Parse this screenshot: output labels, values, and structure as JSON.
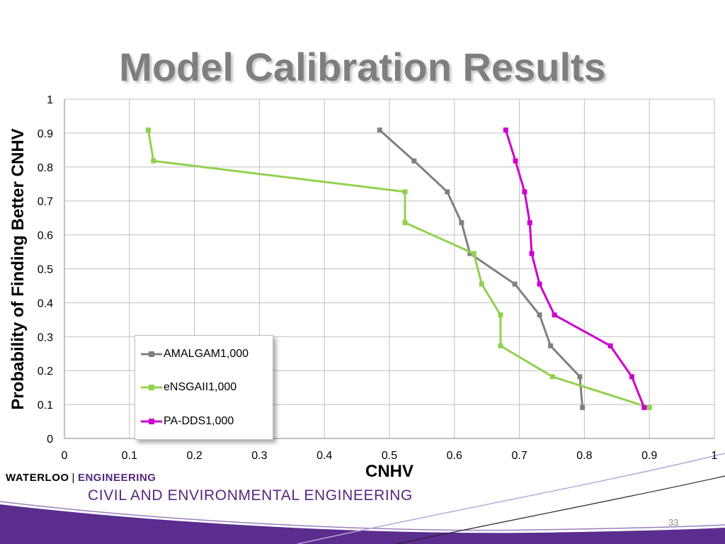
{
  "slide": {
    "title": "Model Calibration Results",
    "page_number": "33"
  },
  "footer": {
    "brand_left": "WATERLOO",
    "brand_separator": "|",
    "brand_right": "ENGINEERING",
    "department": "CIVIL AND ENVIRONMENTAL ENGINEERING"
  },
  "colors": {
    "title_gray": "#7f7f7f",
    "brand_purple": "#57277f",
    "band_purple": "#5b2d8e"
  },
  "chart_data": {
    "type": "line",
    "xlabel": "CNHV",
    "ylabel": "Probability of Finding Better CNHV",
    "xlim": [
      0,
      1
    ],
    "ylim": [
      0,
      1
    ],
    "x_ticks": [
      "0",
      "0.1",
      "0.2",
      "0.3",
      "0.4",
      "0.5",
      "0.6",
      "0.7",
      "0.8",
      "0.9",
      "1"
    ],
    "y_ticks": [
      "0",
      "0.1",
      "0.2",
      "0.3",
      "0.4",
      "0.5",
      "0.6",
      "0.7",
      "0.8",
      "0.9",
      "1"
    ],
    "grid": true,
    "legend_position": "bottom-left",
    "series": [
      {
        "name": "AMALGAM1,000",
        "color": "#808080",
        "points": [
          [
            0.485,
            0.909
          ],
          [
            0.538,
            0.818
          ],
          [
            0.589,
            0.727
          ],
          [
            0.611,
            0.636
          ],
          [
            0.624,
            0.545
          ],
          [
            0.693,
            0.455
          ],
          [
            0.731,
            0.364
          ],
          [
            0.748,
            0.273
          ],
          [
            0.793,
            0.182
          ],
          [
            0.797,
            0.091
          ]
        ]
      },
      {
        "name": "eNSGAII1,000",
        "color": "#92d050",
        "points": [
          [
            0.129,
            0.909
          ],
          [
            0.137,
            0.818
          ],
          [
            0.524,
            0.727
          ],
          [
            0.524,
            0.636
          ],
          [
            0.63,
            0.545
          ],
          [
            0.642,
            0.455
          ],
          [
            0.671,
            0.364
          ],
          [
            0.671,
            0.273
          ],
          [
            0.751,
            0.182
          ],
          [
            0.9,
            0.091
          ]
        ]
      },
      {
        "name": "PA-DDS1,000",
        "color": "#cc00cc",
        "points": [
          [
            0.679,
            0.909
          ],
          [
            0.694,
            0.818
          ],
          [
            0.708,
            0.727
          ],
          [
            0.716,
            0.636
          ],
          [
            0.719,
            0.545
          ],
          [
            0.731,
            0.455
          ],
          [
            0.754,
            0.364
          ],
          [
            0.84,
            0.273
          ],
          [
            0.873,
            0.182
          ],
          [
            0.892,
            0.091
          ]
        ]
      }
    ]
  }
}
